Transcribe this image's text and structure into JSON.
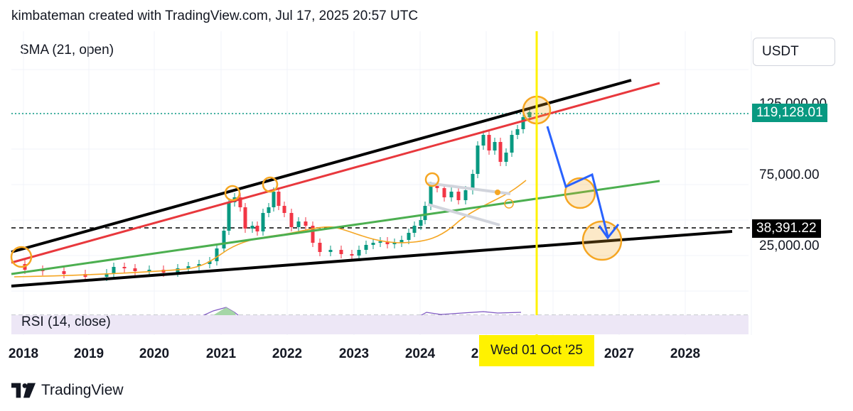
{
  "header": {
    "text": "kimbateman created with TradingView.com, Jul 17, 2025 20:57 UTC"
  },
  "indicator": {
    "label": "SMA (21, open)"
  },
  "currency": "USDT",
  "price_axis": {
    "ticks": [
      "125,000.00",
      "75,000.00",
      "25,000.00"
    ],
    "last_price": "119,128.01",
    "marker_price": "38,391.22"
  },
  "rsi": {
    "label": "RSI (14, close)"
  },
  "time_axis": {
    "years": [
      "2018",
      "2019",
      "2020",
      "2021",
      "2022",
      "2023",
      "2024",
      "2",
      "2027",
      "2028"
    ],
    "crosshair_date": "Wed 01 Oct '25"
  },
  "footer": {
    "brand": "TradingView",
    "logo_icon": "tradingview-logo-icon"
  },
  "colors": {
    "up": "#089981",
    "down": "#f23645",
    "sma": "#f5a623",
    "red_line": "#e8383d",
    "green_line": "#4caf50",
    "trend_black": "#000000",
    "crosshair": "#fff200",
    "projection": "#2962ff",
    "rsi_line": "#7e57c2",
    "last_price_bg": "#089981"
  },
  "chart_data": {
    "type": "candlestick",
    "symbol_quote": "USDT",
    "interval": "monthly",
    "y_scale": "log",
    "last_price": 119128.01,
    "marker_price": 38391.22,
    "x_ticks": [
      "2018",
      "2019",
      "2020",
      "2021",
      "2022",
      "2023",
      "2024",
      "2",
      "2027",
      "2028"
    ],
    "y_ticks": [
      125000,
      75000,
      25000
    ],
    "crosshair": "Wed 01 Oct '25",
    "series": [
      {
        "name": "SMA (21, open)",
        "points": [
          [
            2019.5,
            5200
          ],
          [
            2020.5,
            8500
          ],
          [
            2021.0,
            12000
          ],
          [
            2021.5,
            30000
          ],
          [
            2022.0,
            48000
          ],
          [
            2022.5,
            47000
          ],
          [
            2023.0,
            36000
          ],
          [
            2023.5,
            26000
          ],
          [
            2024.0,
            28000
          ],
          [
            2024.5,
            45000
          ],
          [
            2025.0,
            55000
          ],
          [
            2025.5,
            72000
          ]
        ]
      }
    ],
    "annotations": {
      "trendlines": [
        {
          "color": "black",
          "from": [
            2018.0,
            6500
          ],
          "to": [
            2026.6,
            150000
          ]
        },
        {
          "color": "red",
          "from": [
            2018.0,
            7500
          ],
          "to": [
            2026.9,
            140000
          ]
        },
        {
          "color": "green",
          "from": [
            2018.0,
            5200
          ],
          "to": [
            2027.9,
            75000
          ]
        },
        {
          "color": "black",
          "from": [
            2018.0,
            4000
          ],
          "to": [
            2029.1,
            40000
          ]
        }
      ],
      "projection": [
        [
          2025.9,
          110000
        ],
        [
          2026.3,
          68000
        ],
        [
          2026.75,
          76000
        ],
        [
          2026.95,
          38000
        ],
        [
          2027.1,
          40000
        ]
      ],
      "circles": [
        [
          2018.1,
          13000
        ],
        [
          2021.2,
          58000
        ],
        [
          2021.7,
          65000
        ],
        [
          2024.2,
          65000
        ],
        [
          2025.75,
          120000
        ],
        [
          2026.5,
          62000
        ],
        [
          2026.9,
          36000
        ]
      ]
    }
  }
}
